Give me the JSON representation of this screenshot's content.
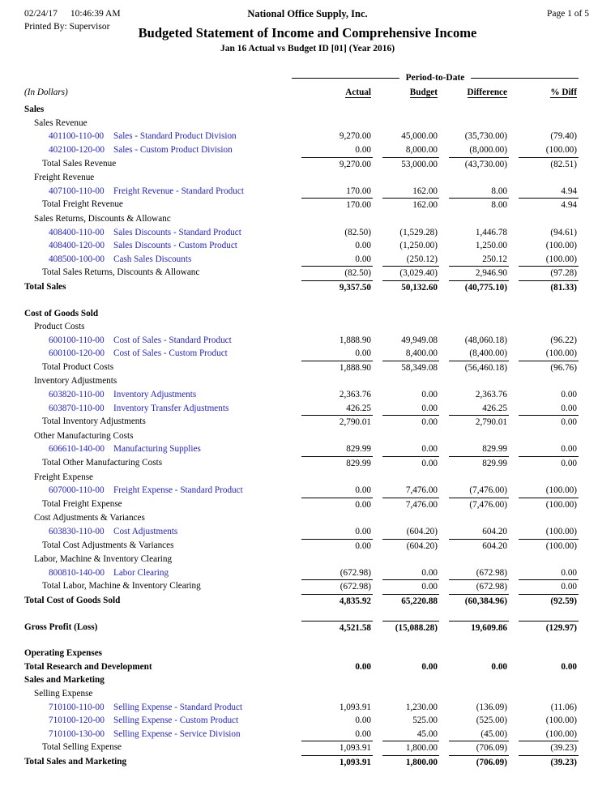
{
  "header": {
    "date": "02/24/17",
    "time": "10:46:39 AM",
    "company": "National Office Supply, Inc.",
    "page": "Page 1 of  5",
    "printed_by": "Printed By: Supervisor",
    "title": "Budgeted Statement of Income and Comprehensive Income",
    "subtitle": "Jan 16 Actual vs Budget ID [01] (Year 2016)"
  },
  "table": {
    "period_header": "Period-to-Date",
    "units_label": "(In Dollars)",
    "columns": [
      "Actual",
      "Budget",
      "Difference",
      "% Diff"
    ],
    "rows": [
      {
        "t": "section",
        "label": "Sales"
      },
      {
        "t": "subsection",
        "label": "Sales Revenue"
      },
      {
        "t": "account",
        "num": "401100-110-00",
        "name": "Sales - Standard Product Division",
        "v": [
          "9,270.00",
          "45,000.00",
          "(35,730.00)",
          "(79.40)"
        ]
      },
      {
        "t": "account",
        "num": "402100-120-00",
        "name": "Sales - Custom Product Division",
        "v": [
          "0.00",
          "8,000.00",
          "(8,000.00)",
          "(100.00)"
        ]
      },
      {
        "t": "total",
        "label": "Total Sales Revenue",
        "rule": true,
        "v": [
          "9,270.00",
          "53,000.00",
          "(43,730.00)",
          "(82.51)"
        ]
      },
      {
        "t": "subsection",
        "label": "Freight Revenue"
      },
      {
        "t": "account",
        "num": "407100-110-00",
        "name": "Freight Revenue - Standard Product",
        "v": [
          "170.00",
          "162.00",
          "8.00",
          "4.94"
        ]
      },
      {
        "t": "total",
        "label": "Total Freight Revenue",
        "rule": true,
        "v": [
          "170.00",
          "162.00",
          "8.00",
          "4.94"
        ]
      },
      {
        "t": "subsection",
        "label": "Sales Returns, Discounts & Allowanc"
      },
      {
        "t": "account",
        "num": "408400-110-00",
        "name": "Sales Discounts - Standard Product",
        "v": [
          "(82.50)",
          "(1,529.28)",
          "1,446.78",
          "(94.61)"
        ]
      },
      {
        "t": "account",
        "num": "408400-120-00",
        "name": "Sales Discounts - Custom Product",
        "v": [
          "0.00",
          "(1,250.00)",
          "1,250.00",
          "(100.00)"
        ]
      },
      {
        "t": "account",
        "num": "408500-100-00",
        "name": "Cash Sales Discounts",
        "v": [
          "0.00",
          "(250.12)",
          "250.12",
          "(100.00)"
        ]
      },
      {
        "t": "total",
        "label": "Total Sales Returns, Discounts & Allowanc",
        "rule": true,
        "v": [
          "(82.50)",
          "(3,029.40)",
          "2,946.90",
          "(97.28)"
        ]
      },
      {
        "t": "sectiontotal",
        "label": "Total Sales",
        "rule": true,
        "v": [
          "9,357.50",
          "50,132.60",
          "(40,775.10)",
          "(81.33)"
        ]
      },
      {
        "t": "blank"
      },
      {
        "t": "section",
        "label": "Cost of Goods Sold"
      },
      {
        "t": "subsection",
        "label": "Product Costs"
      },
      {
        "t": "account",
        "num": "600100-110-00",
        "name": "Cost of Sales - Standard Product",
        "v": [
          "1,888.90",
          "49,949.08",
          "(48,060.18)",
          "(96.22)"
        ]
      },
      {
        "t": "account",
        "num": "600100-120-00",
        "name": "Cost of Sales - Custom Product",
        "v": [
          "0.00",
          "8,400.00",
          "(8,400.00)",
          "(100.00)"
        ]
      },
      {
        "t": "total",
        "label": "Total Product Costs",
        "rule": true,
        "v": [
          "1,888.90",
          "58,349.08",
          "(56,460.18)",
          "(96.76)"
        ]
      },
      {
        "t": "subsection",
        "label": "Inventory Adjustments"
      },
      {
        "t": "account",
        "num": "603820-110-00",
        "name": "Inventory Adjustments",
        "v": [
          "2,363.76",
          "0.00",
          "2,363.76",
          "0.00"
        ]
      },
      {
        "t": "account",
        "num": "603870-110-00",
        "name": "Inventory Transfer Adjustments",
        "v": [
          "426.25",
          "0.00",
          "426.25",
          "0.00"
        ]
      },
      {
        "t": "total",
        "label": "Total Inventory Adjustments",
        "rule": true,
        "v": [
          "2,790.01",
          "0.00",
          "2,790.01",
          "0.00"
        ]
      },
      {
        "t": "subsection",
        "label": "Other Manufacturing Costs"
      },
      {
        "t": "account",
        "num": "606610-140-00",
        "name": "Manufacturing Supplies",
        "v": [
          "829.99",
          "0.00",
          "829.99",
          "0.00"
        ]
      },
      {
        "t": "total",
        "label": "Total Other Manufacturing Costs",
        "rule": true,
        "v": [
          "829.99",
          "0.00",
          "829.99",
          "0.00"
        ]
      },
      {
        "t": "subsection",
        "label": "Freight Expense"
      },
      {
        "t": "account",
        "num": "607000-110-00",
        "name": "Freight Expense - Standard Product",
        "v": [
          "0.00",
          "7,476.00",
          "(7,476.00)",
          "(100.00)"
        ]
      },
      {
        "t": "total",
        "label": "Total Freight Expense",
        "rule": true,
        "v": [
          "0.00",
          "7,476.00",
          "(7,476.00)",
          "(100.00)"
        ]
      },
      {
        "t": "subsection",
        "label": "Cost Adjustments & Variances"
      },
      {
        "t": "account",
        "num": "603830-110-00",
        "name": "Cost Adjustments",
        "v": [
          "0.00",
          "(604.20)",
          "604.20",
          "(100.00)"
        ]
      },
      {
        "t": "total",
        "label": "Total Cost Adjustments & Variances",
        "rule": true,
        "v": [
          "0.00",
          "(604.20)",
          "604.20",
          "(100.00)"
        ]
      },
      {
        "t": "subsection",
        "label": "Labor, Machine & Inventory Clearing"
      },
      {
        "t": "account",
        "num": "800810-140-00",
        "name": "Labor Clearing",
        "v": [
          "(672.98)",
          "0.00",
          "(672.98)",
          "0.00"
        ]
      },
      {
        "t": "total",
        "label": "Total Labor, Machine & Inventory Clearing",
        "rule": true,
        "v": [
          "(672.98)",
          "0.00",
          "(672.98)",
          "0.00"
        ]
      },
      {
        "t": "sectiontotal",
        "label": "Total Cost of Goods Sold",
        "rule": true,
        "v": [
          "4,835.92",
          "65,220.88",
          "(60,384.96)",
          "(92.59)"
        ]
      },
      {
        "t": "blank"
      },
      {
        "t": "sectiontotal",
        "label": "Gross Profit (Loss)",
        "rule": true,
        "v": [
          "4,521.58",
          "(15,088.28)",
          "19,609.86",
          "(129.97)"
        ]
      },
      {
        "t": "blank"
      },
      {
        "t": "section",
        "label": "Operating Expenses"
      },
      {
        "t": "sectiontotal",
        "label": "Total Research and Development",
        "rule": false,
        "v": [
          "0.00",
          "0.00",
          "0.00",
          "0.00"
        ]
      },
      {
        "t": "section",
        "label": "Sales and Marketing"
      },
      {
        "t": "subsection",
        "label": "Selling Expense"
      },
      {
        "t": "account",
        "num": "710100-110-00",
        "name": "Selling Expense - Standard Product",
        "v": [
          "1,093.91",
          "1,230.00",
          "(136.09)",
          "(11.06)"
        ]
      },
      {
        "t": "account",
        "num": "710100-120-00",
        "name": "Selling Expense - Custom Product",
        "v": [
          "0.00",
          "525.00",
          "(525.00)",
          "(100.00)"
        ]
      },
      {
        "t": "account",
        "num": "710100-130-00",
        "name": "Selling Expense - Service Division",
        "v": [
          "0.00",
          "45.00",
          "(45.00)",
          "(100.00)"
        ]
      },
      {
        "t": "total",
        "label": "Total Selling Expense",
        "rule": true,
        "v": [
          "1,093.91",
          "1,800.00",
          "(706.09)",
          "(39.23)"
        ]
      },
      {
        "t": "sectiontotal",
        "label": "Total Sales and Marketing",
        "rule": true,
        "v": [
          "1,093.91",
          "1,800.00",
          "(706.09)",
          "(39.23)"
        ]
      }
    ]
  },
  "colors": {
    "account_link": "#2222cc",
    "text": "#000000",
    "page_bg": "#ffffff"
  }
}
